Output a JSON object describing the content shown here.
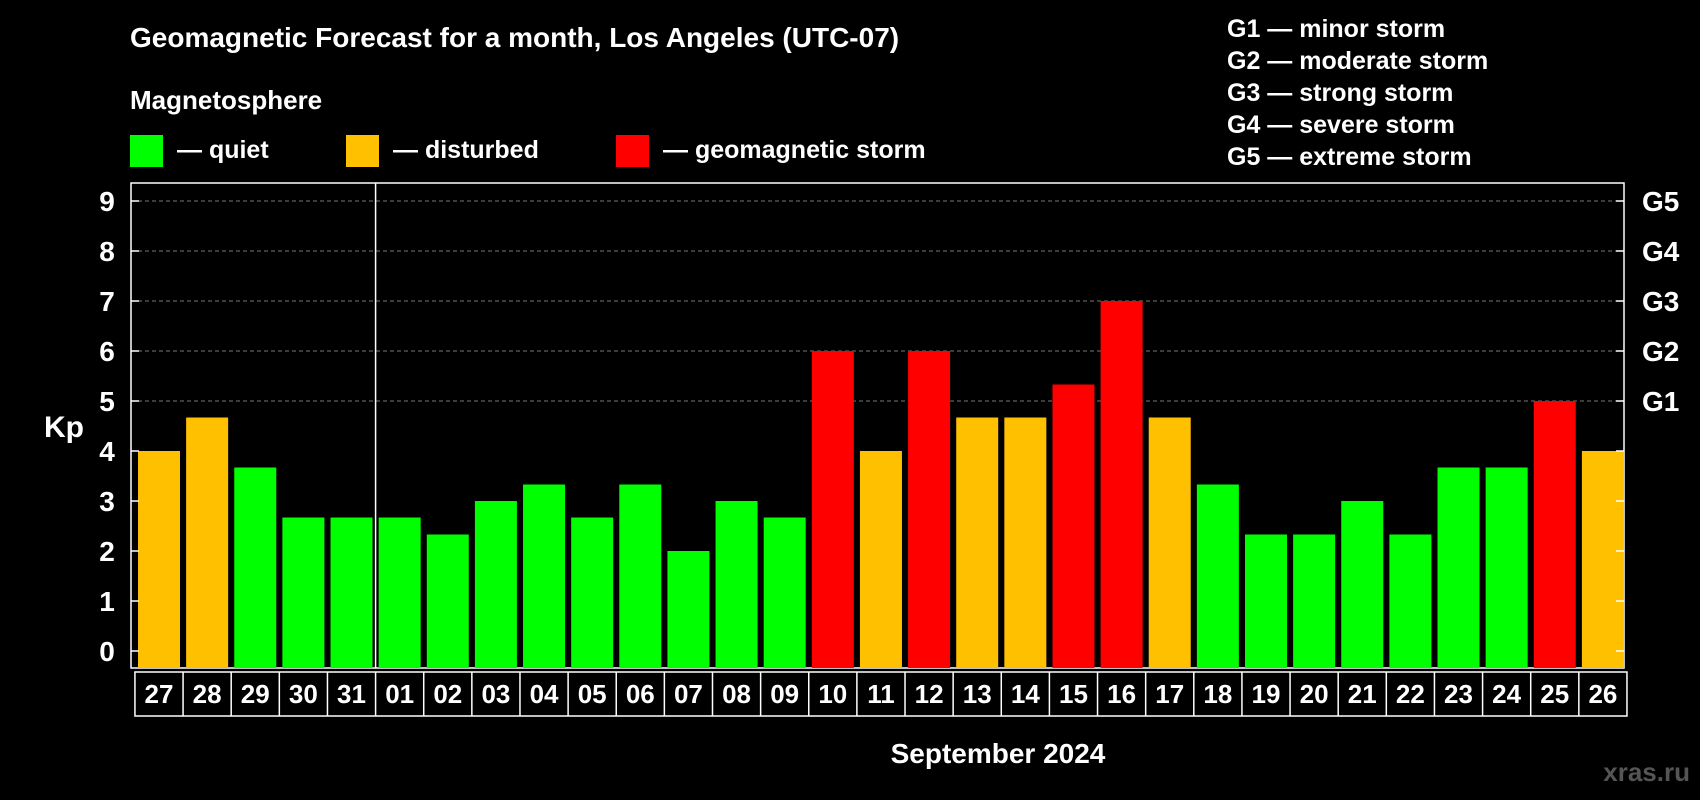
{
  "chart_data": {
    "type": "bar",
    "title": "Geomagnetic Forecast for a month, Los Angeles (UTC-07)",
    "ylabel": "Kp",
    "xlabel": "September 2024",
    "ylim": [
      0,
      9
    ],
    "yticks": [
      "0",
      "1",
      "2",
      "3",
      "4",
      "5",
      "6",
      "7",
      "8",
      "9"
    ],
    "right_axis_labels": [
      {
        "value": 5,
        "label": "G1"
      },
      {
        "value": 6,
        "label": "G2"
      },
      {
        "value": 7,
        "label": "G3"
      },
      {
        "value": 8,
        "label": "G4"
      },
      {
        "value": 9,
        "label": "G5"
      }
    ],
    "categories": [
      "27",
      "28",
      "29",
      "30",
      "31",
      "01",
      "02",
      "03",
      "04",
      "05",
      "06",
      "07",
      "08",
      "09",
      "10",
      "11",
      "12",
      "13",
      "14",
      "15",
      "16",
      "17",
      "18",
      "19",
      "20",
      "21",
      "22",
      "23",
      "24",
      "25",
      "26"
    ],
    "values": [
      4,
      4.67,
      3.67,
      2.67,
      2.67,
      2.67,
      2.33,
      3,
      3.33,
      2.67,
      3.33,
      2,
      3,
      2.67,
      6,
      4,
      6,
      4.67,
      4.67,
      5.33,
      7,
      4.67,
      3.33,
      2.33,
      2.33,
      3,
      2.33,
      3.67,
      3.67,
      5,
      4
    ],
    "month_divider_after": "31",
    "legend": {
      "heading": "Magnetosphere",
      "items": [
        {
          "key": "quiet",
          "label": "— quiet",
          "color": "#00ff00"
        },
        {
          "key": "disturbed",
          "label": "— disturbed",
          "color": "#ffc000"
        },
        {
          "key": "storm",
          "label": "— geomagnetic storm",
          "color": "#ff0000"
        }
      ]
    },
    "storm_scale": [
      "G1 — minor storm",
      "G2 — moderate storm",
      "G3 — strong storm",
      "G4 — severe storm",
      "G5 — extreme storm"
    ],
    "watermark": "xras.ru"
  }
}
